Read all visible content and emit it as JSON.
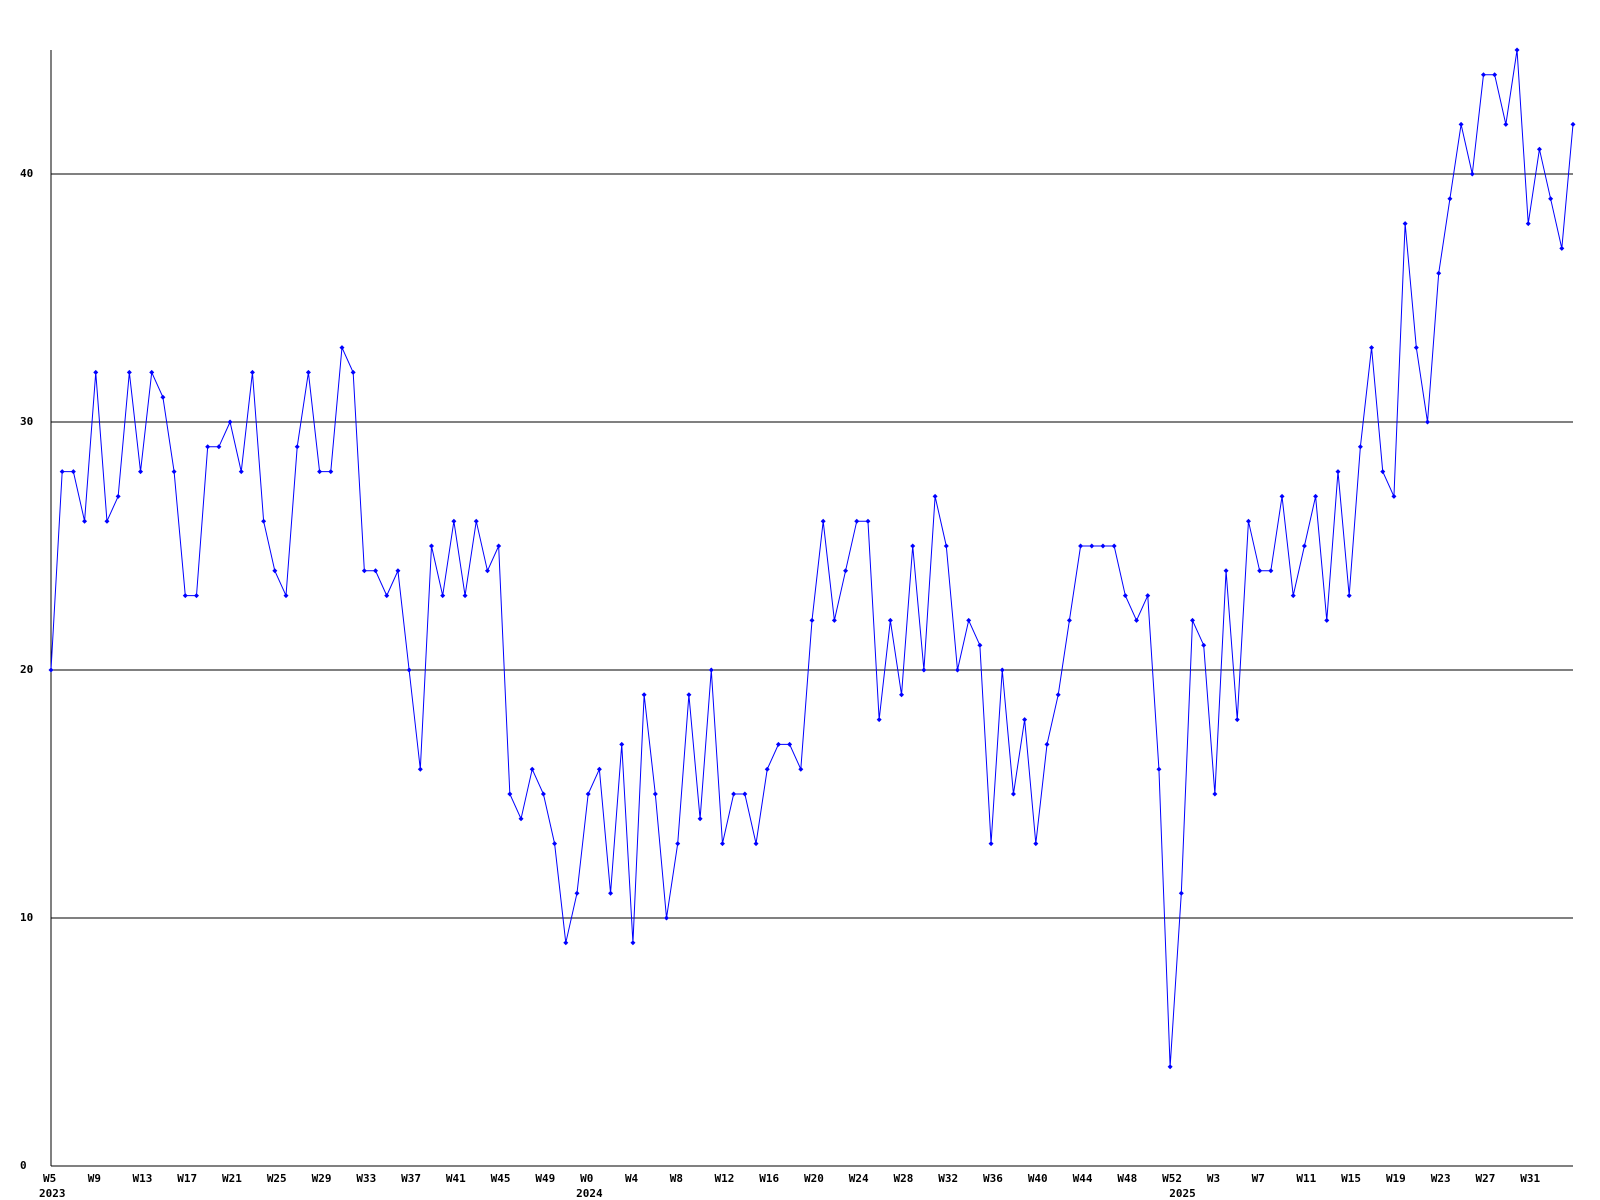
{
  "chart_data": {
    "type": "line",
    "categories": [
      "W5",
      null,
      null,
      null,
      "W9",
      null,
      null,
      null,
      "W13",
      null,
      null,
      null,
      "W17",
      null,
      null,
      null,
      "W21",
      null,
      null,
      null,
      "W25",
      null,
      null,
      null,
      "W29",
      null,
      null,
      null,
      "W33",
      null,
      null,
      null,
      "W37",
      null,
      null,
      null,
      "W41",
      null,
      null,
      null,
      "W45",
      null,
      null,
      null,
      "W49",
      null,
      null,
      null,
      "W0",
      null,
      null,
      null,
      "W4",
      null,
      null,
      null,
      "W8",
      null,
      null,
      null,
      "W12",
      null,
      null,
      null,
      "W16",
      null,
      null,
      null,
      "W20",
      null,
      null,
      null,
      "W24",
      null,
      null,
      null,
      "W28",
      null,
      null,
      null,
      "W32",
      null,
      null,
      null,
      "W36",
      null,
      null,
      null,
      "W40",
      null,
      null,
      null,
      "W44",
      null,
      null,
      null,
      "W48",
      null,
      null,
      null,
      "W52",
      null,
      null,
      null,
      "W3",
      null,
      null,
      null,
      "W7",
      null,
      null,
      null,
      "W11",
      null,
      null,
      null,
      "W15",
      null,
      null,
      null,
      "W19",
      null,
      null,
      null,
      "W23",
      null,
      null,
      null,
      "W27",
      null,
      null,
      null,
      "W31",
      null,
      null,
      null,
      null
    ],
    "years": [
      "2023",
      null,
      null,
      null,
      null,
      null,
      null,
      null,
      null,
      null,
      null,
      null,
      null,
      null,
      null,
      null,
      null,
      null,
      null,
      null,
      null,
      null,
      null,
      null,
      null,
      null,
      null,
      null,
      null,
      null,
      null,
      null,
      null,
      null,
      null,
      null,
      null,
      null,
      null,
      null,
      null,
      null,
      null,
      null,
      null,
      null,
      null,
      null,
      "2024",
      null,
      null,
      null,
      null,
      null,
      null,
      null,
      null,
      null,
      null,
      null,
      null,
      null,
      null,
      null,
      null,
      null,
      null,
      null,
      null,
      null,
      null,
      null,
      null,
      null,
      null,
      null,
      null,
      null,
      null,
      null,
      null,
      null,
      null,
      null,
      null,
      null,
      null,
      null,
      null,
      null,
      null,
      null,
      null,
      null,
      null,
      null,
      null,
      null,
      null,
      null,
      null,
      "2025",
      null,
      null,
      null,
      null,
      null,
      null,
      null,
      null,
      null,
      null,
      null,
      null,
      null,
      null,
      null,
      null,
      null,
      null,
      null,
      null,
      null,
      null,
      null,
      null,
      null,
      null,
      null,
      null,
      null,
      null,
      null,
      null,
      null,
      null,
      null
    ],
    "series": [
      {
        "color": "#0000ff",
        "values": [
          20,
          28,
          28,
          26,
          32,
          26,
          27,
          32,
          28,
          32,
          31,
          28,
          23,
          23,
          29,
          29,
          30,
          28,
          32,
          26,
          24,
          23,
          29,
          32,
          28,
          28,
          33,
          32,
          24,
          24,
          23,
          24,
          20,
          16,
          25,
          23,
          26,
          23,
          26,
          24,
          25,
          15,
          14,
          16,
          15,
          13,
          9,
          11,
          15,
          16,
          11,
          17,
          9,
          19,
          15,
          10,
          13,
          19,
          14,
          20,
          13,
          15,
          15,
          13,
          16,
          17,
          17,
          16,
          22,
          26,
          22,
          24,
          26,
          26,
          18,
          22,
          19,
          25,
          20,
          27,
          25,
          20,
          22,
          21,
          13,
          20,
          15,
          18,
          13,
          17,
          19,
          22,
          25,
          25,
          25,
          25,
          23,
          22,
          23,
          16,
          4,
          11,
          22,
          21,
          15,
          24,
          18,
          26,
          24,
          24,
          27,
          23,
          25,
          27,
          22,
          28,
          23,
          29,
          33,
          28,
          27,
          38,
          33,
          30,
          36,
          39,
          42,
          40,
          44,
          44,
          42,
          45,
          38,
          41,
          39,
          37,
          42
        ]
      }
    ],
    "ylim": [
      0,
      45
    ],
    "yticks": [
      0,
      10,
      20,
      30,
      40
    ],
    "grid": true
  }
}
